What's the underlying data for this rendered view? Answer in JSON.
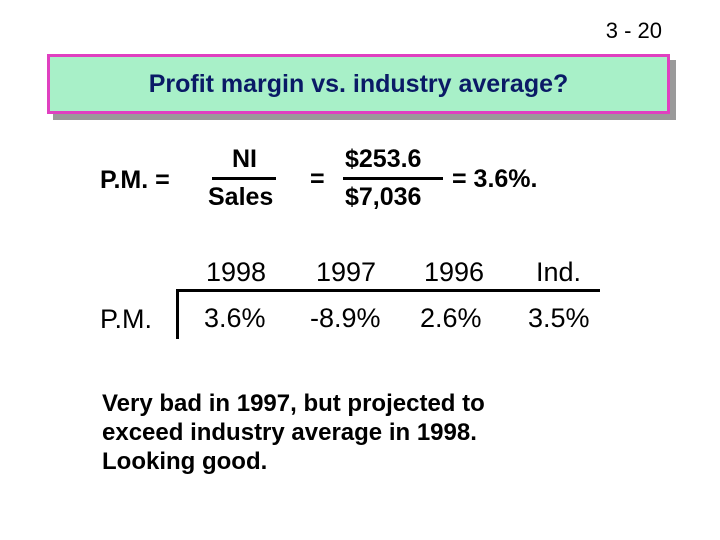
{
  "slide_number": "3 - 20",
  "title": "Profit margin vs. industry average?",
  "formula": {
    "label": "P.M. =",
    "fraction1": {
      "numerator": "NI",
      "denominator": "Sales"
    },
    "equals": "=",
    "fraction2": {
      "numerator": "$253.6",
      "denominator": "$7,036"
    },
    "result": "= 3.6%."
  },
  "table": {
    "row_label": "P.M.",
    "columns": [
      {
        "header": "1998",
        "value": "3.6%"
      },
      {
        "header": "1997",
        "value": "-8.9%"
      },
      {
        "header": "1996",
        "value": "2.6%"
      },
      {
        "header": "Ind.",
        "value": "3.5%"
      }
    ]
  },
  "conclusion": {
    "lines": [
      "Very bad in 1997, but projected to",
      "exceed industry average in 1998.",
      "Looking good."
    ]
  },
  "colors": {
    "title_background": "#a8f0c8",
    "title_border": "#e040c0",
    "title_text": "#0a1a66"
  }
}
